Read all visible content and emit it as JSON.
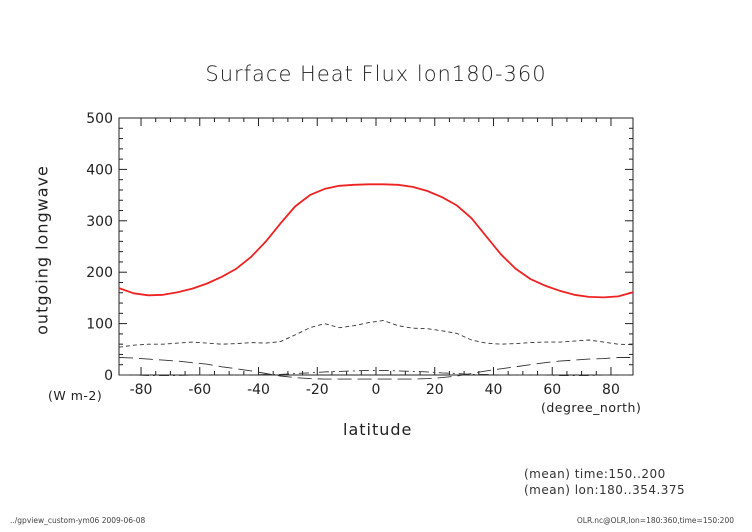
{
  "figure": {
    "title": "Surface Heat Flux lon180-360",
    "ylabel": "outgoing longwave",
    "yunit": "(W m-2)",
    "xlabel": "latitude",
    "xunit": "(degree_north)",
    "notes": [
      "(mean) time:150..200",
      "(mean) lon:180..354.375"
    ],
    "footer_left": "../gpview_custom-ym06  2009-06-08",
    "footer_right": "OLR.nc@OLR,lon=180:360,time=150:200"
  },
  "chart_data": {
    "type": "line",
    "title": "Surface Heat Flux lon180-360",
    "xlabel": "latitude",
    "ylabel": "outgoing longwave",
    "xlim": [
      -87.5,
      87.5
    ],
    "ylim": [
      0,
      500
    ],
    "xticks": [
      -80,
      -60,
      -40,
      -20,
      0,
      20,
      40,
      60,
      80
    ],
    "xtick_labels": [
      "-80",
      "-60",
      "-40",
      "-20",
      "0",
      "20",
      "40",
      "60",
      "80"
    ],
    "yticks": [
      0,
      100,
      200,
      300,
      400,
      500
    ],
    "ytick_labels": [
      "0",
      "100",
      "200",
      "300",
      "400",
      "500"
    ],
    "grid": false,
    "series": [
      {
        "style": "solid",
        "color": "#ee2222",
        "x": [
          -87.5,
          -82.5,
          -77.5,
          -72.5,
          -67.5,
          -62.5,
          -57.5,
          -52.5,
          -47.5,
          -42.5,
          -37.5,
          -32.5,
          -27.5,
          -22.5,
          -17.5,
          -12.5,
          -7.5,
          -2.5,
          2.5,
          7.5,
          12.5,
          17.5,
          22.5,
          27.5,
          32.5,
          37.5,
          42.5,
          47.5,
          52.5,
          57.5,
          62.5,
          67.5,
          72.5,
          77.5,
          82.5,
          87.5
        ],
        "y": [
          169,
          159,
          155,
          156,
          161,
          168,
          178,
          191,
          207,
          230,
          260,
          295,
          328,
          350,
          362,
          368,
          370,
          371,
          371,
          370,
          366,
          358,
          346,
          330,
          305,
          270,
          235,
          207,
          187,
          174,
          164,
          156,
          152,
          151,
          153,
          161
        ]
      },
      {
        "style": "dashed",
        "color": "#333333",
        "x": [
          -87.5,
          -82.5,
          -77.5,
          -72.5,
          -67.5,
          -62.5,
          -57.5,
          -52.5,
          -47.5,
          -42.5,
          -37.5,
          -32.5,
          -27.5,
          -22.5,
          -17.5,
          -12.5,
          -7.5,
          -2.5,
          2.5,
          7.5,
          12.5,
          17.5,
          22.5,
          27.5,
          32.5,
          37.5,
          42.5,
          47.5,
          52.5,
          57.5,
          62.5,
          67.5,
          72.5,
          77.5,
          82.5,
          87.5
        ],
        "y": [
          54,
          58,
          60,
          60,
          62,
          64,
          62,
          60,
          61,
          63,
          62,
          65,
          78,
          92,
          100,
          92,
          96,
          102,
          106,
          96,
          91,
          90,
          86,
          81,
          68,
          62,
          60,
          61,
          63,
          64,
          64,
          66,
          68,
          64,
          60,
          59
        ]
      },
      {
        "style": "long-dash",
        "color": "#333333",
        "x": [
          -87.5,
          -82.5,
          -77.5,
          -72.5,
          -67.5,
          -62.5,
          -57.5,
          -52.5,
          -47.5,
          -42.5,
          -37.5,
          -32.5,
          -27.5,
          -22.5,
          -17.5,
          -12.5,
          -7.5,
          -2.5,
          2.5,
          7.5,
          12.5,
          17.5,
          22.5,
          27.5,
          32.5,
          37.5,
          42.5,
          47.5,
          52.5,
          57.5,
          62.5,
          67.5,
          72.5,
          77.5,
          82.5,
          87.5
        ],
        "y": [
          34,
          33,
          31,
          29,
          27,
          24,
          21,
          16,
          12,
          8,
          3,
          -2,
          -5,
          -7,
          -8,
          -8,
          -8,
          -8,
          -8,
          -8,
          -8,
          -7,
          -5,
          -2,
          3,
          8,
          12,
          16,
          20,
          24,
          27,
          29,
          31,
          32,
          34,
          34
        ]
      },
      {
        "style": "dash-dot",
        "color": "#333333",
        "x": [
          -87.5,
          -82.5,
          -77.5,
          -72.5,
          -67.5,
          -62.5,
          -57.5,
          -52.5,
          -47.5,
          -42.5,
          -37.5,
          -32.5,
          -27.5,
          -22.5,
          -17.5,
          -12.5,
          -7.5,
          -2.5,
          2.5,
          7.5,
          12.5,
          17.5,
          22.5,
          27.5,
          32.5,
          37.5,
          42.5,
          47.5,
          52.5,
          57.5,
          62.5,
          67.5,
          72.5,
          77.5,
          82.5,
          87.5
        ],
        "y": [
          0,
          0,
          -1,
          -1,
          -1,
          0,
          0,
          0,
          0,
          0,
          1,
          1,
          3,
          4,
          6,
          7,
          8,
          9,
          9,
          8,
          7,
          6,
          4,
          3,
          1,
          1,
          0,
          0,
          0,
          0,
          -1,
          -1,
          -1,
          0,
          0,
          0
        ]
      }
    ]
  }
}
